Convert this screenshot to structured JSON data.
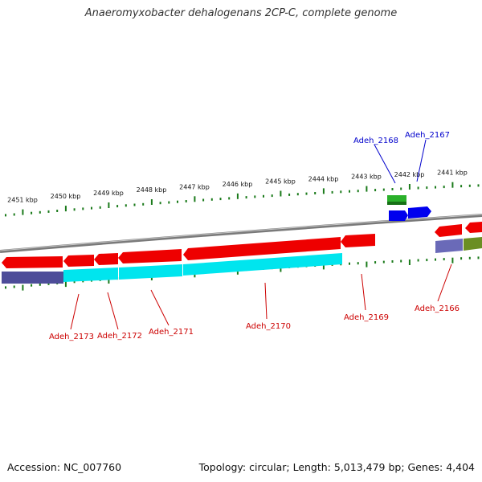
{
  "title": "Anaeromyxobacter dehalogenans 2CP-C, complete genome",
  "footer": {
    "accession": "Accession: NC_007760",
    "topology": "Topology: circular; Length: 5,013,479 bp; Genes: 4,404"
  },
  "colors": {
    "reverse_gene": "#ee0000",
    "reverse_cds": "#00e5ee",
    "reverse_other": "#4d4d99",
    "forward_gene": "#2ab02a",
    "forward_cds": "#0000ee",
    "olive_feature": "#6b8e23",
    "tick": "#1a7a1a",
    "label_reverse": "#cc0000",
    "label_forward": "#0000cc",
    "backbone": "#888888"
  },
  "kbp_labels": [
    "2451 kbp",
    "2450 kbp",
    "2449 kbp",
    "2448 kbp",
    "2447 kbp",
    "2446 kbp",
    "2445 kbp",
    "2444 kbp",
    "2443 kbp",
    "2442 kbp",
    "2441 kbp"
  ],
  "gene_labels": [
    {
      "text": "Adeh_2168",
      "strand": "forward"
    },
    {
      "text": "Adeh_2167",
      "strand": "forward"
    },
    {
      "text": "Adeh_2173",
      "strand": "reverse"
    },
    {
      "text": "Adeh_2172",
      "strand": "reverse"
    },
    {
      "text": "Adeh_2171",
      "strand": "reverse"
    },
    {
      "text": "Adeh_2170",
      "strand": "reverse"
    },
    {
      "text": "Adeh_2169",
      "strand": "reverse"
    },
    {
      "text": "Adeh_2166",
      "strand": "reverse"
    }
  ]
}
